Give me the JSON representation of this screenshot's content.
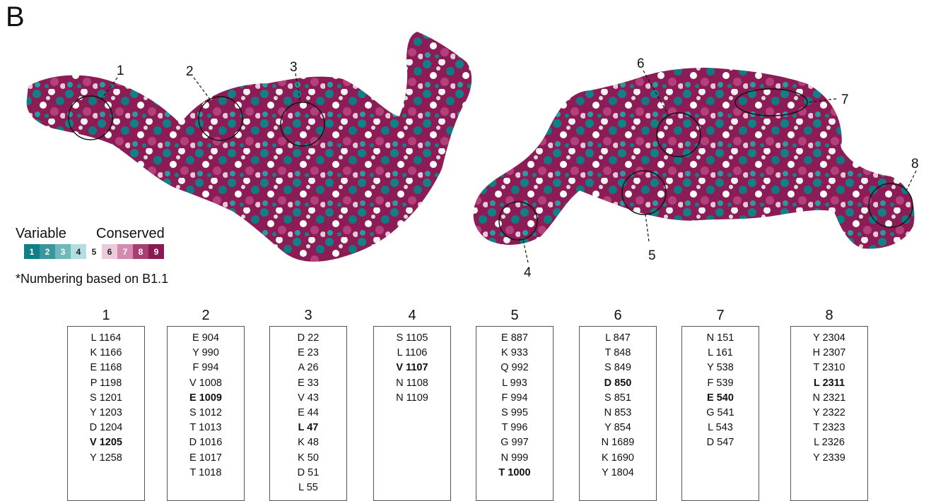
{
  "panel_label": "B",
  "legend": {
    "variable_label": "Variable",
    "conserved_label": "Conserved",
    "scale": [
      {
        "grade": "1",
        "color": "#0f7f86",
        "text_color": "#ffffff"
      },
      {
        "grade": "2",
        "color": "#3a969c",
        "text_color": "#ffffff"
      },
      {
        "grade": "3",
        "color": "#6fb9bd",
        "text_color": "#ffffff"
      },
      {
        "grade": "4",
        "color": "#b3dde0",
        "text_color": "#222222"
      },
      {
        "grade": "5",
        "color": "#ffffff",
        "text_color": "#222222"
      },
      {
        "grade": "6",
        "color": "#eccadb",
        "text_color": "#222222"
      },
      {
        "grade": "7",
        "color": "#d48aae",
        "text_color": "#ffffff"
      },
      {
        "grade": "8",
        "color": "#a83f73",
        "text_color": "#ffffff"
      },
      {
        "grade": "9",
        "color": "#8a1a52",
        "text_color": "#ffffff"
      }
    ]
  },
  "note": "*Numbering based on B1.1",
  "site_labels": [
    "1",
    "2",
    "3",
    "4",
    "5",
    "6",
    "7",
    "8"
  ],
  "sites": [
    {
      "label": "1",
      "residues": [
        {
          "text": "L 1164"
        },
        {
          "text": "K 1166"
        },
        {
          "text": "E 1168"
        },
        {
          "text": "P 1198"
        },
        {
          "text": "S 1201"
        },
        {
          "text": "Y 1203"
        },
        {
          "text": "D 1204"
        },
        {
          "text": "V 1205",
          "bold": true
        },
        {
          "text": "Y 1258"
        }
      ]
    },
    {
      "label": "2",
      "residues": [
        {
          "text": "E 904"
        },
        {
          "text": "Y 990"
        },
        {
          "text": "F 994"
        },
        {
          "text": "V 1008"
        },
        {
          "text": "E 1009",
          "bold": true
        },
        {
          "text": "S 1012"
        },
        {
          "text": "T 1013"
        },
        {
          "text": "D 1016"
        },
        {
          "text": "E 1017"
        },
        {
          "text": "T 1018"
        }
      ]
    },
    {
      "label": "3",
      "residues": [
        {
          "text": "D 22"
        },
        {
          "text": "E 23"
        },
        {
          "text": "A 26"
        },
        {
          "text": "E 33"
        },
        {
          "text": "V 43"
        },
        {
          "text": "E 44"
        },
        {
          "text": "L 47",
          "bold": true
        },
        {
          "text": "K 48"
        },
        {
          "text": "K 50"
        },
        {
          "text": "D 51"
        },
        {
          "text": "L 55"
        }
      ]
    },
    {
      "label": "4",
      "residues": [
        {
          "text": "S 1105"
        },
        {
          "text": "L 1106"
        },
        {
          "text": "V 1107",
          "bold": true
        },
        {
          "text": "N 1108"
        },
        {
          "text": "N 1109"
        }
      ]
    },
    {
      "label": "5",
      "residues": [
        {
          "text": "E 887"
        },
        {
          "text": "K 933"
        },
        {
          "text": "Q 992"
        },
        {
          "text": "L 993"
        },
        {
          "text": "F 994"
        },
        {
          "text": "S 995"
        },
        {
          "text": "T 996"
        },
        {
          "text": "G 997"
        },
        {
          "text": "N 999"
        },
        {
          "text": "T 1000",
          "bold": true
        }
      ]
    },
    {
      "label": "6",
      "residues": [
        {
          "text": "L 847"
        },
        {
          "text": "T 848"
        },
        {
          "text": "S 849"
        },
        {
          "text": "D 850",
          "bold": true
        },
        {
          "text": "S 851"
        },
        {
          "text": "N 853"
        },
        {
          "text": "Y 854"
        },
        {
          "text": "N 1689"
        },
        {
          "text": "K 1690"
        },
        {
          "text": "Y 1804"
        }
      ]
    },
    {
      "label": "7",
      "residues": [
        {
          "text": "N 151"
        },
        {
          "text": "L 161"
        },
        {
          "text": "Y 538"
        },
        {
          "text": "F 539"
        },
        {
          "text": "E 540",
          "bold": true
        },
        {
          "text": "G 541"
        },
        {
          "text": "L 543"
        },
        {
          "text": "D 547"
        }
      ]
    },
    {
      "label": "8",
      "residues": [
        {
          "text": "Y 2304"
        },
        {
          "text": "H 2307"
        },
        {
          "text": "T 2310"
        },
        {
          "text": "L 2311",
          "bold": true
        },
        {
          "text": "N 2321"
        },
        {
          "text": "Y 2322"
        },
        {
          "text": "T 2323"
        },
        {
          "text": "L 2326"
        },
        {
          "text": "Y 2339"
        }
      ]
    }
  ]
}
